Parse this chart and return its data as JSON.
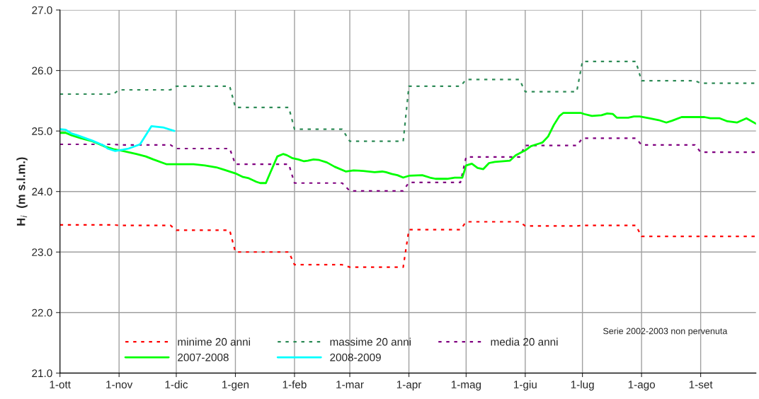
{
  "chart_data": {
    "type": "line",
    "ylabel": "H$_{i}$  (m s.l.m.)",
    "xlim": [
      "2007-10-01",
      "2008-09-30"
    ],
    "xticks": [
      {
        "value": "2007-10-01",
        "label": "1-ott"
      },
      {
        "value": "2007-11-01",
        "label": "1-nov"
      },
      {
        "value": "2007-12-01",
        "label": "1-dic"
      },
      {
        "value": "2008-01-01",
        "label": "1-gen"
      },
      {
        "value": "2008-02-01",
        "label": "1-feb"
      },
      {
        "value": "2008-03-01",
        "label": "1-mar"
      },
      {
        "value": "2008-04-01",
        "label": "1-apr"
      },
      {
        "value": "2008-05-01",
        "label": "1-mag"
      },
      {
        "value": "2008-06-01",
        "label": "1-giu"
      },
      {
        "value": "2008-07-01",
        "label": "1-lug"
      },
      {
        "value": "2008-08-01",
        "label": "1-ago"
      },
      {
        "value": "2008-09-01",
        "label": "1-set"
      }
    ],
    "ylim": [
      21,
      27
    ],
    "yticks": [
      {
        "value": 21,
        "label": "21.0"
      },
      {
        "value": 22,
        "label": "22.0"
      },
      {
        "value": 23,
        "label": "23.0"
      },
      {
        "value": 24,
        "label": "24.0"
      },
      {
        "value": 25,
        "label": "25.0"
      },
      {
        "value": 26,
        "label": "26.0"
      },
      {
        "value": 27,
        "label": "27.0"
      }
    ],
    "grid": true,
    "legend": "bottom",
    "marker": "none",
    "annotations": [
      "Serie 2002-2003 non pervenuta"
    ],
    "series": [
      {
        "name": "minime 20 anni",
        "color": "#ff0000",
        "line_style": "dotted",
        "x": [
          "2007-10-01",
          "2007-10-29",
          "2007-11-01",
          "2007-11-28",
          "2007-12-01",
          "2007-12-29",
          "2008-01-01",
          "2008-01-29",
          "2008-02-01",
          "2008-02-26",
          "2008-03-01",
          "2008-03-29",
          "2008-04-01",
          "2008-04-28",
          "2008-05-01",
          "2008-05-29",
          "2008-06-01",
          "2008-06-28",
          "2008-07-01",
          "2008-07-29",
          "2008-08-01",
          "2008-08-29",
          "2008-09-01",
          "2008-09-30"
        ],
        "values": [
          23.45,
          23.45,
          23.44,
          23.44,
          23.36,
          23.36,
          23.0,
          23.0,
          22.79,
          22.79,
          22.75,
          22.75,
          23.37,
          23.37,
          23.5,
          23.5,
          23.43,
          23.43,
          23.44,
          23.44,
          23.26,
          23.26,
          23.26,
          23.26
        ]
      },
      {
        "name": "massime 20 anni",
        "color": "#2e8b57",
        "line_style": "dotted",
        "x": [
          "2007-10-01",
          "2007-10-29",
          "2007-11-01",
          "2007-11-28",
          "2007-12-01",
          "2007-12-29",
          "2008-01-01",
          "2008-01-29",
          "2008-02-01",
          "2008-02-26",
          "2008-03-01",
          "2008-03-29",
          "2008-04-01",
          "2008-04-28",
          "2008-05-01",
          "2008-05-29",
          "2008-06-01",
          "2008-06-28",
          "2008-07-01",
          "2008-07-29",
          "2008-08-01",
          "2008-08-29",
          "2008-09-01",
          "2008-09-30"
        ],
        "values": [
          25.61,
          25.61,
          25.68,
          25.68,
          25.74,
          25.74,
          25.39,
          25.39,
          25.03,
          25.03,
          24.83,
          24.83,
          25.74,
          25.74,
          25.85,
          25.85,
          25.65,
          25.65,
          26.15,
          26.15,
          25.83,
          25.83,
          25.79,
          25.79
        ]
      },
      {
        "name": "media 20 anni",
        "color": "#800080",
        "line_style": "dotted",
        "x": [
          "2007-10-01",
          "2007-10-29",
          "2007-11-01",
          "2007-11-28",
          "2007-12-01",
          "2007-12-29",
          "2008-01-01",
          "2008-01-29",
          "2008-02-01",
          "2008-02-26",
          "2008-03-01",
          "2008-03-29",
          "2008-04-01",
          "2008-04-28",
          "2008-05-01",
          "2008-05-29",
          "2008-06-01",
          "2008-06-28",
          "2008-07-01",
          "2008-07-29",
          "2008-08-01",
          "2008-08-29",
          "2008-09-01",
          "2008-09-30"
        ],
        "values": [
          24.78,
          24.78,
          24.77,
          24.77,
          24.71,
          24.71,
          24.45,
          24.45,
          24.14,
          24.14,
          24.01,
          24.01,
          24.15,
          24.15,
          24.57,
          24.57,
          24.76,
          24.76,
          24.88,
          24.88,
          24.77,
          24.77,
          24.65,
          24.65
        ]
      },
      {
        "name": "2007-2008",
        "color": "#00ff00",
        "line_style": "solid",
        "x": [
          "2007-10-01",
          "2007-10-04",
          "2007-10-07",
          "2007-10-12",
          "2007-10-18",
          "2007-10-24",
          "2007-10-29",
          "2007-11-03",
          "2007-11-10",
          "2007-11-15",
          "2007-11-19",
          "2007-11-26",
          "2007-12-10",
          "2007-12-16",
          "2007-12-22",
          "2007-12-26",
          "2008-01-01",
          "2008-01-05",
          "2008-01-08",
          "2008-01-12",
          "2008-01-14",
          "2008-01-17",
          "2008-01-19",
          "2008-01-23",
          "2008-01-26",
          "2008-01-28",
          "2008-01-31",
          "2008-02-03",
          "2008-02-06",
          "2008-02-08",
          "2008-02-11",
          "2008-02-14",
          "2008-02-18",
          "2008-02-22",
          "2008-02-28",
          "2008-03-03",
          "2008-03-08",
          "2008-03-14",
          "2008-03-18",
          "2008-03-20",
          "2008-03-23",
          "2008-03-26",
          "2008-03-29",
          "2008-04-01",
          "2008-04-08",
          "2008-04-12",
          "2008-04-15",
          "2008-04-21",
          "2008-04-25",
          "2008-04-29",
          "2008-05-01",
          "2008-05-04",
          "2008-05-07",
          "2008-05-10",
          "2008-05-13",
          "2008-05-16",
          "2008-05-24",
          "2008-05-27",
          "2008-06-01",
          "2008-06-04",
          "2008-06-10",
          "2008-06-13",
          "2008-06-16",
          "2008-06-19",
          "2008-06-21",
          "2008-06-25",
          "2008-06-30",
          "2008-07-02",
          "2008-07-06",
          "2008-07-11",
          "2008-07-14",
          "2008-07-17",
          "2008-07-19",
          "2008-07-25",
          "2008-07-28",
          "2008-07-31",
          "2008-08-05",
          "2008-08-10",
          "2008-08-14",
          "2008-08-17",
          "2008-08-22",
          "2008-09-03",
          "2008-09-06",
          "2008-09-11",
          "2008-09-15",
          "2008-09-20",
          "2008-09-25",
          "2008-09-30"
        ],
        "values": [
          24.97,
          24.97,
          24.93,
          24.88,
          24.83,
          24.75,
          24.7,
          24.67,
          24.62,
          24.58,
          24.53,
          24.45,
          24.45,
          24.43,
          24.4,
          24.36,
          24.3,
          24.24,
          24.22,
          24.16,
          24.14,
          24.14,
          24.29,
          24.58,
          24.62,
          24.6,
          24.55,
          24.53,
          24.5,
          24.51,
          24.53,
          24.52,
          24.48,
          24.41,
          24.33,
          24.35,
          24.34,
          24.32,
          24.33,
          24.32,
          24.29,
          24.27,
          24.23,
          24.26,
          24.27,
          24.23,
          24.21,
          24.21,
          24.23,
          24.23,
          24.43,
          24.46,
          24.39,
          24.37,
          24.47,
          24.49,
          24.51,
          24.6,
          24.68,
          24.75,
          24.81,
          24.91,
          25.1,
          25.25,
          25.3,
          25.3,
          25.3,
          25.28,
          25.25,
          25.26,
          25.29,
          25.28,
          25.22,
          25.22,
          25.24,
          25.24,
          25.21,
          25.18,
          25.14,
          25.17,
          25.23,
          25.23,
          25.21,
          25.21,
          25.16,
          25.14,
          25.21,
          25.12
        ]
      },
      {
        "name": "2008-2009",
        "color": "#00ffff",
        "line_style": "solid",
        "x": [
          "2007-10-01",
          "2007-10-04",
          "2007-10-07",
          "2007-10-10",
          "2007-10-18",
          "2007-10-24",
          "2007-10-26",
          "2007-10-30",
          "2007-11-03",
          "2007-11-06",
          "2007-11-12",
          "2007-11-18",
          "2007-11-24",
          "2007-11-30"
        ],
        "values": [
          25.03,
          25.02,
          24.96,
          24.93,
          24.84,
          24.76,
          24.71,
          24.67,
          24.69,
          24.71,
          24.78,
          25.08,
          25.06,
          25.0
        ]
      }
    ]
  }
}
